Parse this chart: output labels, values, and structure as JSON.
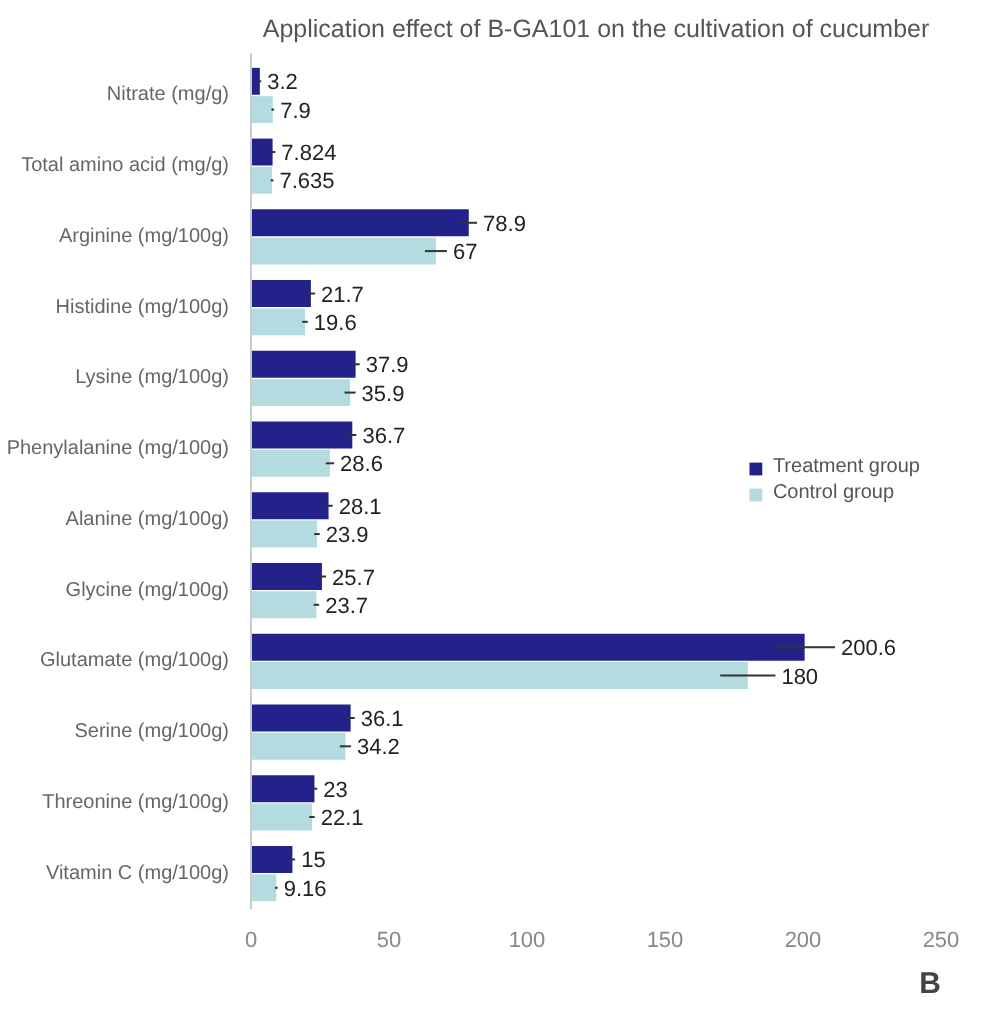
{
  "chart_data": {
    "type": "bar",
    "orientation": "horizontal",
    "title": "Application effect of B-GA101 on the cultivation of cucumber",
    "categories": [
      "Nitrate (mg/g)",
      "Total amino acid (mg/g)",
      "Arginine (mg/100g)",
      "Histidine (mg/100g)",
      "Lysine (mg/100g)",
      "Phenylalanine (mg/100g)",
      "Alanine (mg/100g)",
      "Glycine (mg/100g)",
      "Glutamate (mg/100g)",
      "Serine (mg/100g)",
      "Threonine (mg/100g)",
      "Vitamin C (mg/100g)"
    ],
    "series": [
      {
        "name": "Treatment group",
        "color": "#22228a",
        "values": [
          3.2,
          7.824,
          78.9,
          21.7,
          37.9,
          36.7,
          28.1,
          25.7,
          200.6,
          36.1,
          23,
          15
        ],
        "errors": [
          0.5,
          1,
          3,
          1.5,
          1.5,
          1.5,
          1.5,
          1.5,
          11,
          1.5,
          1,
          1
        ]
      },
      {
        "name": "Control group",
        "color": "#b4dce0",
        "values": [
          7.9,
          7.635,
          67,
          19.6,
          35.9,
          28.6,
          23.9,
          23.7,
          180,
          34.2,
          22.1,
          9.16
        ],
        "errors": [
          0.5,
          0.5,
          4,
          1,
          2,
          1.5,
          1,
          1,
          10,
          2,
          1,
          0.5
        ]
      }
    ],
    "xlim": [
      0,
      250
    ],
    "xticks": [
      0,
      50,
      100,
      150,
      200,
      250
    ],
    "grid": false,
    "legend": "right",
    "data_labels": true,
    "annotations": [
      "B"
    ]
  }
}
